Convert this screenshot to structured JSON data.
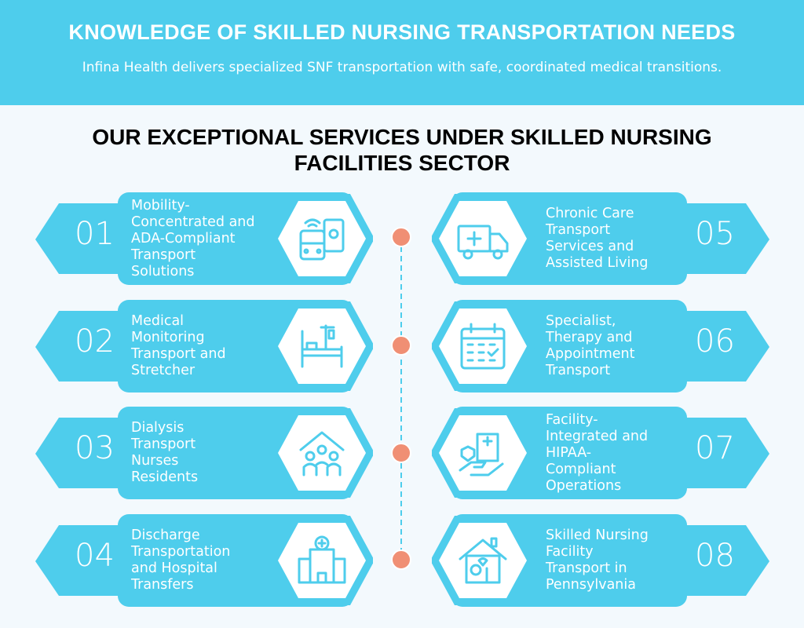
{
  "header": {
    "title": "KNOWLEDGE OF SKILLED NURSING TRANSPORTATION NEEDS",
    "subtitle": "Infina Health delivers specialized SNF transportation with safe, coordinated medical transitions."
  },
  "section_title": "OUR EXCEPTIONAL SERVICES UNDER SKILLED NURSING FACILITIES SECTOR",
  "colors": {
    "accent": "#4ecdec",
    "dot": "#f08f74",
    "background": "#f3f9fd"
  },
  "services": [
    {
      "number": "01",
      "label": "Mobility-\nConcentrated and\nADA-Compliant\nTransport\nSolutions",
      "icon": "bus-phone-icon"
    },
    {
      "number": "02",
      "label": "Medical\nMonitoring\nTransport and\nStretcher",
      "icon": "hospital-bed-icon"
    },
    {
      "number": "03",
      "label": "Dialysis\nTransport\nNurses\nResidents",
      "icon": "residents-home-icon"
    },
    {
      "number": "04",
      "label": "Discharge\nTransportation\nand Hospital\nTransfers",
      "icon": "hospital-building-icon"
    },
    {
      "number": "05",
      "label": "Chronic Care\nTransport\nServices and\nAssisted Living",
      "icon": "ambulance-icon"
    },
    {
      "number": "06",
      "label": "Specialist,\nTherapy and\nAppointment\nTransport",
      "icon": "calendar-icon"
    },
    {
      "number": "07",
      "label": "Facility-\nIntegrated and\nHIPAA-\nCompliant\nOperations",
      "icon": "hand-hospital-icon"
    },
    {
      "number": "08",
      "label": "Skilled Nursing\nFacility\nTransport in\nPennsylvania",
      "icon": "nursing-home-icon"
    }
  ]
}
